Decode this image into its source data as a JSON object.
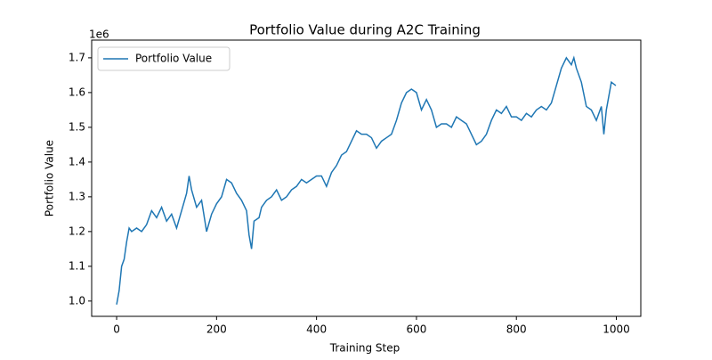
{
  "chart_data": {
    "type": "line",
    "title": "Portfolio Value during A2C Training",
    "x_label": "Training Step",
    "y_label": "Portfolio Value",
    "y_offset_label": "1e6",
    "x": [
      0,
      5,
      10,
      15,
      20,
      25,
      30,
      40,
      50,
      60,
      70,
      80,
      90,
      100,
      110,
      120,
      130,
      140,
      145,
      150,
      160,
      170,
      180,
      190,
      200,
      210,
      220,
      230,
      240,
      250,
      260,
      265,
      270,
      275,
      285,
      290,
      300,
      310,
      320,
      330,
      340,
      350,
      360,
      370,
      380,
      390,
      400,
      410,
      420,
      430,
      440,
      450,
      460,
      470,
      480,
      490,
      500,
      510,
      520,
      530,
      540,
      550,
      560,
      570,
      580,
      590,
      600,
      610,
      620,
      630,
      640,
      650,
      660,
      670,
      680,
      690,
      700,
      710,
      720,
      730,
      740,
      750,
      760,
      770,
      780,
      790,
      800,
      810,
      820,
      830,
      840,
      850,
      860,
      870,
      880,
      890,
      900,
      910,
      915,
      920,
      930,
      940,
      950,
      960,
      970,
      975,
      980,
      990,
      999
    ],
    "series": [
      {
        "name": "Portfolio Value",
        "color": "#1f77b4",
        "values": [
          0.99,
          1.03,
          1.1,
          1.12,
          1.17,
          1.21,
          1.2,
          1.21,
          1.2,
          1.22,
          1.26,
          1.24,
          1.27,
          1.23,
          1.25,
          1.21,
          1.26,
          1.31,
          1.36,
          1.32,
          1.27,
          1.29,
          1.2,
          1.25,
          1.28,
          1.3,
          1.35,
          1.34,
          1.31,
          1.29,
          1.26,
          1.19,
          1.15,
          1.23,
          1.24,
          1.27,
          1.29,
          1.3,
          1.32,
          1.29,
          1.3,
          1.32,
          1.33,
          1.35,
          1.34,
          1.35,
          1.36,
          1.36,
          1.33,
          1.37,
          1.39,
          1.42,
          1.43,
          1.46,
          1.49,
          1.48,
          1.48,
          1.47,
          1.44,
          1.46,
          1.47,
          1.48,
          1.52,
          1.57,
          1.6,
          1.61,
          1.6,
          1.55,
          1.58,
          1.55,
          1.5,
          1.51,
          1.51,
          1.5,
          1.53,
          1.52,
          1.51,
          1.48,
          1.45,
          1.46,
          1.48,
          1.52,
          1.55,
          1.54,
          1.56,
          1.53,
          1.53,
          1.52,
          1.54,
          1.53,
          1.55,
          1.56,
          1.55,
          1.57,
          1.62,
          1.67,
          1.7,
          1.68,
          1.7,
          1.67,
          1.63,
          1.56,
          1.55,
          1.52,
          1.56,
          1.48,
          1.55,
          1.63,
          1.62
        ]
      }
    ],
    "xlim": [
      -49.95,
      1048.95
    ],
    "xticks": [
      0,
      200,
      400,
      600,
      800,
      1000
    ],
    "ylim": [
      0.956,
      1.751
    ],
    "yticks": [
      {
        "value": 1.0,
        "label": "1.0"
      },
      {
        "value": 1.1,
        "label": "1.1"
      },
      {
        "value": 1.2,
        "label": "1.2"
      },
      {
        "value": 1.3,
        "label": "1.3"
      },
      {
        "value": 1.4,
        "label": "1.4"
      },
      {
        "value": 1.5,
        "label": "1.5"
      },
      {
        "value": 1.6,
        "label": "1.6"
      },
      {
        "value": 1.7,
        "label": "1.7"
      }
    ],
    "legend": "upper left"
  }
}
